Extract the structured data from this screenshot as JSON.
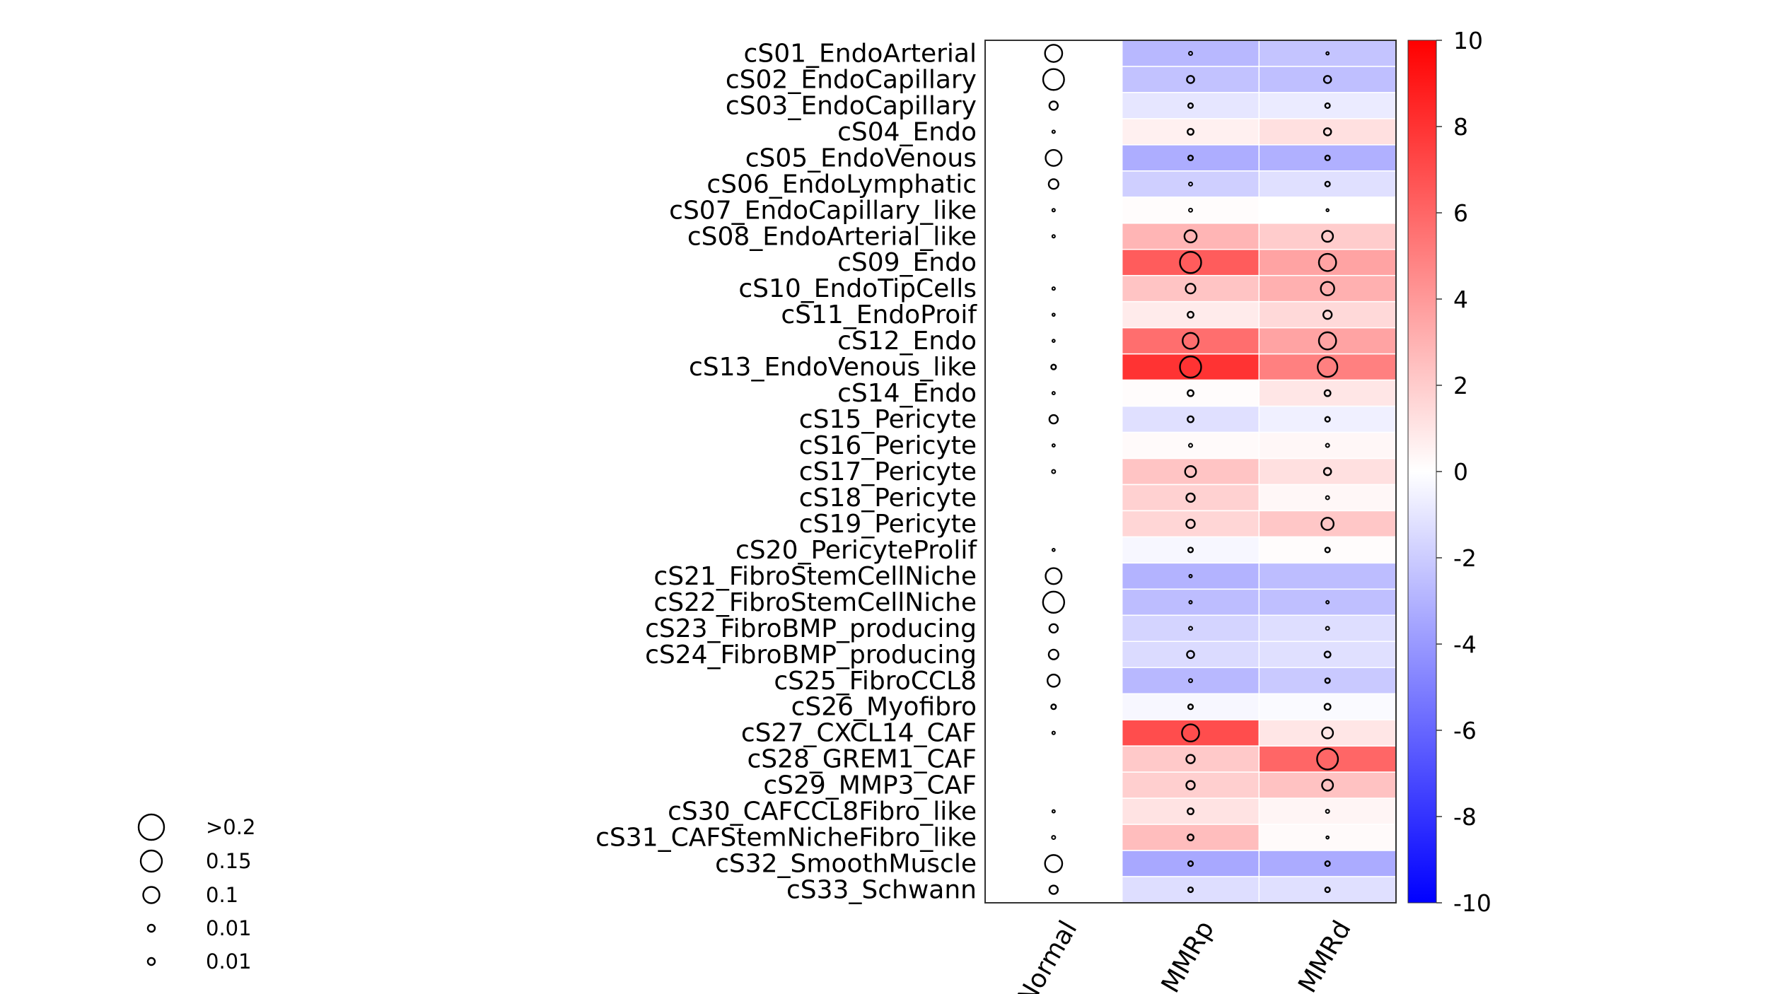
{
  "chart_data": {
    "type": "heatmap",
    "columns": [
      "Normal",
      "MMRp",
      "MMRd"
    ],
    "rows": [
      "cS01_EndoArterial",
      "cS02_EndoCapillary",
      "cS03_EndoCapillary",
      "cS04_Endo",
      "cS05_EndoVenous",
      "cS06_EndoLymphatic",
      "cS07_EndoCapillary_like",
      "cS08_EndoArterial_like",
      "cS09_Endo",
      "cS10_EndoTipCells",
      "cS11_EndoProif",
      "cS12_Endo",
      "cS13_EndoVenous_like",
      "cS14_Endo",
      "cS15_Pericyte",
      "cS16_Pericyte",
      "cS17_Pericyte",
      "cS18_Pericyte",
      "cS19_Pericyte",
      "cS20_PericyteProlif",
      "cS21_FibroStemCellNiche",
      "cS22_FibroStemCellNiche",
      "cS23_FibroBMP_producing",
      "cS24_FibroBMP_producing",
      "cS25_FibroCCL8",
      "cS26_Myofibro",
      "cS27_CXCL14_CAF",
      "cS28_GREM1_CAF",
      "cS29_MMP3_CAF",
      "cS30_CAFCCL8Fibro_like",
      "cS31_CAFStemNicheFibro_like",
      "cS32_SmoothMuscle",
      "cS33_Schwann"
    ],
    "color_values": {
      "Normal": [
        0,
        0,
        0,
        0,
        0,
        0,
        0,
        0,
        0,
        0,
        0,
        0,
        0,
        0,
        0,
        0,
        0,
        0,
        0,
        0,
        0,
        0,
        0,
        0,
        0,
        0,
        0,
        0,
        0,
        0,
        0,
        0,
        0
      ],
      "MMRp": [
        -2.8,
        -2.4,
        -1.0,
        0.6,
        -3.2,
        -1.9,
        0.1,
        2.9,
        6.4,
        2.3,
        0.8,
        5.7,
        8.0,
        0.1,
        -1.2,
        0.2,
        2.3,
        1.8,
        1.6,
        -0.3,
        -3.0,
        -2.6,
        -1.7,
        -1.4,
        -2.8,
        -0.3,
        7.0,
        2.1,
        1.9,
        1.1,
        2.6,
        -3.4,
        -1.3
      ],
      "MMRd": [
        -2.3,
        -2.5,
        -0.8,
        1.2,
        -3.1,
        -1.2,
        0.0,
        2.0,
        3.6,
        3.1,
        1.5,
        3.6,
        5.0,
        1.0,
        -0.6,
        0.3,
        1.2,
        0.3,
        2.2,
        0.1,
        -2.6,
        -2.5,
        -1.3,
        -1.2,
        -2.1,
        -0.2,
        1.0,
        6.0,
        2.4,
        0.4,
        0.2,
        -3.3,
        -1.2
      ]
    },
    "size_values": {
      "Normal": [
        0.12,
        0.15,
        0.05,
        0.005,
        0.11,
        0.06,
        0.005,
        0.005,
        0,
        0.005,
        0.003,
        0.003,
        0.02,
        0.004,
        0.05,
        0.004,
        0.01,
        0,
        0,
        0.003,
        0.11,
        0.16,
        0.05,
        0.06,
        0.08,
        0.02,
        0.005,
        0,
        0,
        0.004,
        0.01,
        0.12,
        0.05
      ],
      "MMRp": [
        0.01,
        0.04,
        0.02,
        0.03,
        0.02,
        0.01,
        0.01,
        0.08,
        0.16,
        0.06,
        0.03,
        0.11,
        0.18,
        0.03,
        0.03,
        0.01,
        0.07,
        0.05,
        0.05,
        0.02,
        0.005,
        0.005,
        0.01,
        0.04,
        0.01,
        0.02,
        0.12,
        0.05,
        0.05,
        0.03,
        0.03,
        0.02,
        0.02
      ],
      "MMRd": [
        0.004,
        0.04,
        0.02,
        0.04,
        0.02,
        0.02,
        0.002,
        0.07,
        0.12,
        0.09,
        0.05,
        0.12,
        0.14,
        0.03,
        0.02,
        0.01,
        0.04,
        0.01,
        0.08,
        0.02,
        0,
        0.005,
        0.01,
        0.03,
        0.02,
        0.03,
        0.07,
        0.15,
        0.07,
        0.01,
        0.003,
        0.02,
        0.02
      ]
    },
    "colorbar": {
      "min": -10,
      "max": 10,
      "ticks": [
        "10",
        "8",
        "6",
        "4",
        "2",
        "0",
        "-2",
        "-4",
        "-6",
        "-8",
        "-10"
      ],
      "tick_values": [
        10,
        8,
        6,
        4,
        2,
        0,
        -2,
        -4,
        -6,
        -8,
        -10
      ],
      "low_color": "#0000ff",
      "mid_color": "#ffffff",
      "high_color": "#ff0000"
    },
    "size_legend": {
      "labels": [
        ">0.2",
        "0.15",
        "0.1",
        "0.01",
        "0.01"
      ],
      "values": [
        0.2,
        0.15,
        0.1,
        0.01,
        0.01
      ]
    }
  }
}
